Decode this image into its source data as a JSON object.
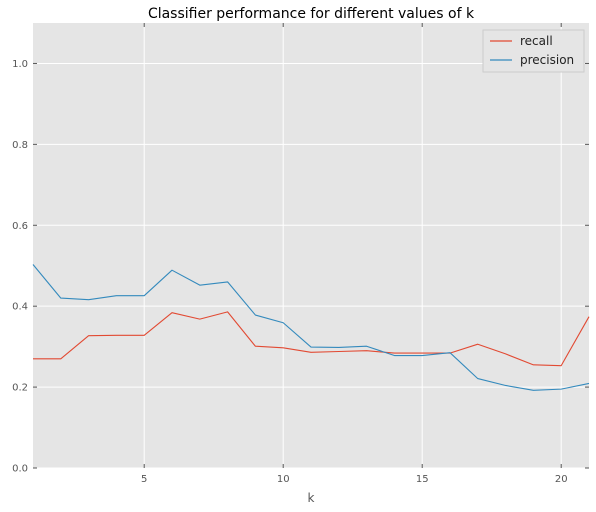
{
  "chart_data": {
    "type": "line",
    "title": "Classifier performance for different values of k",
    "xlabel": "k",
    "ylabel": "",
    "xlim": [
      1,
      21
    ],
    "ylim": [
      0.0,
      1.1
    ],
    "xticks": [
      5,
      10,
      15,
      20
    ],
    "xtick_labels": [
      "5",
      "10",
      "15",
      "20"
    ],
    "yticks": [
      0.0,
      0.2,
      0.4,
      0.6,
      0.8,
      1.0
    ],
    "ytick_labels": [
      "0.0",
      "0.2",
      "0.4",
      "0.6",
      "0.8",
      "1.0"
    ],
    "grid": true,
    "legend_position": "top-right",
    "x": [
      1,
      2,
      3,
      4,
      5,
      6,
      7,
      8,
      9,
      10,
      11,
      12,
      13,
      14,
      15,
      16,
      17,
      18,
      19,
      20,
      21
    ],
    "series": [
      {
        "name": "recall",
        "color": "#E24A33",
        "values": [
          0.27,
          0.27,
          0.327,
          0.328,
          0.328,
          0.384,
          0.368,
          0.386,
          0.301,
          0.297,
          0.286,
          0.288,
          0.29,
          0.284,
          0.284,
          0.284,
          0.306,
          0.282,
          0.255,
          0.253,
          0.374
        ]
      },
      {
        "name": "precision",
        "color": "#348ABD",
        "values": [
          0.503,
          0.42,
          0.416,
          0.426,
          0.426,
          0.489,
          0.452,
          0.46,
          0.378,
          0.359,
          0.299,
          0.298,
          0.301,
          0.278,
          0.278,
          0.285,
          0.221,
          0.204,
          0.192,
          0.195,
          0.209
        ]
      }
    ]
  }
}
